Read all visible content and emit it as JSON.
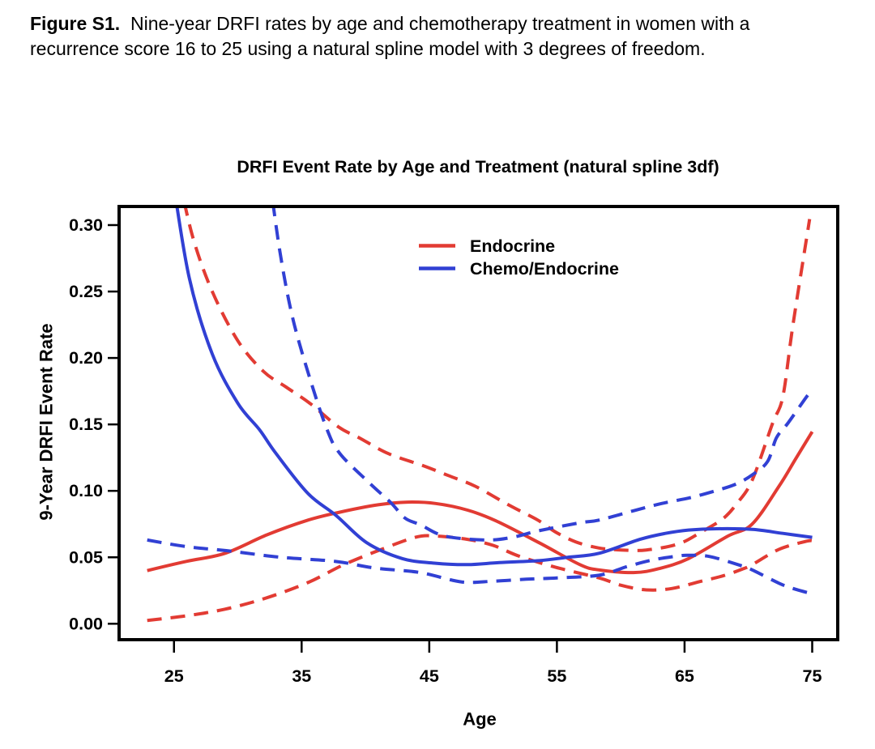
{
  "caption": {
    "label": "Figure S1.",
    "text": "Nine-year DRFI rates by age and chemotherapy treatment in women with a recurrence score 16 to 25 using a natural spline model with 3 degrees of freedom."
  },
  "chart_data": {
    "type": "line",
    "title": "DRFI Event Rate by Age and Treatment (natural spline 3df)",
    "xlabel": "Age",
    "ylabel": "9-Year DRFI Event Rate",
    "xlim": [
      20.7,
      77.0
    ],
    "ylim": [
      -0.012,
      0.314
    ],
    "x_ticks": [
      25,
      35,
      45,
      55,
      65,
      75
    ],
    "x_tick_labels": [
      "25",
      "35",
      "45",
      "55",
      "65",
      "75"
    ],
    "y_ticks": [
      0,
      0.05,
      0.1,
      0.15,
      0.2,
      0.25,
      0.3
    ],
    "y_tick_labels": [
      "0.00",
      "0.05",
      "0.10",
      "0.15",
      "0.20",
      "0.25",
      "0.30"
    ],
    "grid": false,
    "colors": {
      "endocrine": "#e23b33",
      "chemo_endocrine": "#3140d4"
    },
    "legend": {
      "position": "inside-top-center",
      "entries": [
        {
          "label": "Endocrine",
          "color": "#e23b33"
        },
        {
          "label": "Chemo/Endocrine",
          "color": "#3140d4"
        }
      ]
    },
    "series": [
      {
        "id": "endocrine-estimate",
        "name": "Endocrine",
        "band": "estimate",
        "color_key": "endocrine",
        "style": "solid",
        "points": [
          [
            22.9,
            0.04
          ],
          [
            26,
            0.047
          ],
          [
            29,
            0.053
          ],
          [
            32.3,
            0.067
          ],
          [
            35.5,
            0.078
          ],
          [
            38,
            0.084
          ],
          [
            41,
            0.0895
          ],
          [
            43.3,
            0.0915
          ],
          [
            45.5,
            0.0905
          ],
          [
            48,
            0.0855
          ],
          [
            50.2,
            0.0775
          ],
          [
            53.6,
            0.061
          ],
          [
            56.8,
            0.0445
          ],
          [
            58.3,
            0.0405
          ],
          [
            61,
            0.0385
          ],
          [
            63,
            0.0415
          ],
          [
            65.3,
            0.049
          ],
          [
            68.4,
            0.066
          ],
          [
            70.3,
            0.075
          ],
          [
            72.4,
            0.1035
          ],
          [
            73.7,
            0.124
          ],
          [
            75,
            0.1445
          ]
        ]
      },
      {
        "id": "endocrine-upper",
        "name": "Endocrine",
        "band": "upper",
        "color_key": "endocrine",
        "style": "dashed",
        "points": [
          [
            25.4,
            0.335
          ],
          [
            26.5,
            0.29
          ],
          [
            28,
            0.25
          ],
          [
            30,
            0.213
          ],
          [
            32,
            0.19
          ],
          [
            33.8,
            0.178
          ],
          [
            35.7,
            0.1655
          ],
          [
            37.9,
            0.148
          ],
          [
            39.5,
            0.14
          ],
          [
            41.8,
            0.128
          ],
          [
            44.5,
            0.119
          ],
          [
            46.5,
            0.1115
          ],
          [
            48.6,
            0.1035
          ],
          [
            51.2,
            0.0895
          ],
          [
            53.5,
            0.078
          ],
          [
            54.9,
            0.069
          ],
          [
            56.5,
            0.0615
          ],
          [
            58.3,
            0.057
          ],
          [
            60,
            0.0555
          ],
          [
            62,
            0.0555
          ],
          [
            64.5,
            0.06
          ],
          [
            66.3,
            0.069
          ],
          [
            68,
            0.079
          ],
          [
            69.1,
            0.0905
          ],
          [
            70.3,
            0.108
          ],
          [
            71.9,
            0.151
          ],
          [
            72.7,
            0.171
          ],
          [
            73.5,
            0.2255
          ],
          [
            74.8,
            0.3045
          ]
        ]
      },
      {
        "id": "endocrine-lower",
        "name": "Endocrine",
        "band": "lower",
        "color_key": "endocrine",
        "style": "dashed",
        "points": [
          [
            22.9,
            0.0025
          ],
          [
            26,
            0.006
          ],
          [
            29,
            0.011
          ],
          [
            32.1,
            0.019
          ],
          [
            35.5,
            0.031
          ],
          [
            38.2,
            0.044
          ],
          [
            41,
            0.055
          ],
          [
            43.9,
            0.065
          ],
          [
            45.5,
            0.066
          ],
          [
            48,
            0.0635
          ],
          [
            50,
            0.059
          ],
          [
            52,
            0.051
          ],
          [
            54.9,
            0.0425
          ],
          [
            58.3,
            0.0345
          ],
          [
            60,
            0.029
          ],
          [
            62,
            0.0255
          ],
          [
            64,
            0.0265
          ],
          [
            66.3,
            0.032
          ],
          [
            68,
            0.036
          ],
          [
            69.5,
            0.041
          ],
          [
            70.3,
            0.0445
          ],
          [
            72.4,
            0.056
          ],
          [
            74.5,
            0.062
          ],
          [
            75,
            0.0625
          ]
        ]
      },
      {
        "id": "chemo-endocrine-estimate",
        "name": "Chemo/Endocrine",
        "band": "estimate",
        "color_key": "chemo_endocrine",
        "style": "solid",
        "points": [
          [
            24.9,
            0.335
          ],
          [
            26.2,
            0.26
          ],
          [
            28,
            0.203
          ],
          [
            30,
            0.166
          ],
          [
            31.7,
            0.146
          ],
          [
            33,
            0.128
          ],
          [
            35.5,
            0.098
          ],
          [
            37.7,
            0.0815
          ],
          [
            40.1,
            0.061
          ],
          [
            42.9,
            0.049
          ],
          [
            45.5,
            0.0455
          ],
          [
            48,
            0.0445
          ],
          [
            50.5,
            0.046
          ],
          [
            53.6,
            0.0475
          ],
          [
            55.8,
            0.05
          ],
          [
            58.3,
            0.053
          ],
          [
            61.5,
            0.0635
          ],
          [
            63.5,
            0.068
          ],
          [
            65.3,
            0.0705
          ],
          [
            67.5,
            0.0715
          ],
          [
            70.3,
            0.071
          ],
          [
            72.7,
            0.068
          ],
          [
            75,
            0.065
          ]
        ]
      },
      {
        "id": "chemo-endocrine-upper",
        "name": "Chemo/Endocrine",
        "band": "upper",
        "color_key": "chemo_endocrine",
        "style": "dashed",
        "points": [
          [
            32.5,
            0.335
          ],
          [
            33.3,
            0.28
          ],
          [
            34.3,
            0.23
          ],
          [
            35.7,
            0.183
          ],
          [
            37,
            0.146
          ],
          [
            38,
            0.128
          ],
          [
            40.3,
            0.106
          ],
          [
            42,
            0.091
          ],
          [
            43.1,
            0.0795
          ],
          [
            44.3,
            0.0745
          ],
          [
            46.2,
            0.066
          ],
          [
            49.4,
            0.063
          ],
          [
            51.5,
            0.065
          ],
          [
            53.6,
            0.07
          ],
          [
            56.8,
            0.076
          ],
          [
            58.3,
            0.078
          ],
          [
            61,
            0.085
          ],
          [
            63.2,
            0.0905
          ],
          [
            65.5,
            0.095
          ],
          [
            67.4,
            0.1
          ],
          [
            69,
            0.105
          ],
          [
            70.3,
            0.112
          ],
          [
            71.5,
            0.122
          ],
          [
            72.2,
            0.14
          ],
          [
            73.1,
            0.151
          ],
          [
            74.5,
            0.17
          ],
          [
            75,
            0.176
          ]
        ]
      },
      {
        "id": "chemo-endocrine-lower",
        "name": "Chemo/Endocrine",
        "band": "lower",
        "color_key": "chemo_endocrine",
        "style": "dashed",
        "points": [
          [
            22.9,
            0.063
          ],
          [
            26,
            0.058
          ],
          [
            29.1,
            0.055
          ],
          [
            33.4,
            0.05
          ],
          [
            37.6,
            0.047
          ],
          [
            40.7,
            0.042
          ],
          [
            44.3,
            0.0385
          ],
          [
            47.5,
            0.0315
          ],
          [
            50,
            0.032
          ],
          [
            52.6,
            0.0335
          ],
          [
            55,
            0.0345
          ],
          [
            58.3,
            0.0365
          ],
          [
            60.5,
            0.043
          ],
          [
            62.5,
            0.048
          ],
          [
            64.5,
            0.051
          ],
          [
            65.3,
            0.0515
          ],
          [
            67,
            0.0505
          ],
          [
            69.5,
            0.0435
          ],
          [
            70.3,
            0.0405
          ],
          [
            72.4,
            0.0305
          ],
          [
            73.5,
            0.0265
          ],
          [
            75,
            0.0225
          ]
        ]
      }
    ]
  }
}
